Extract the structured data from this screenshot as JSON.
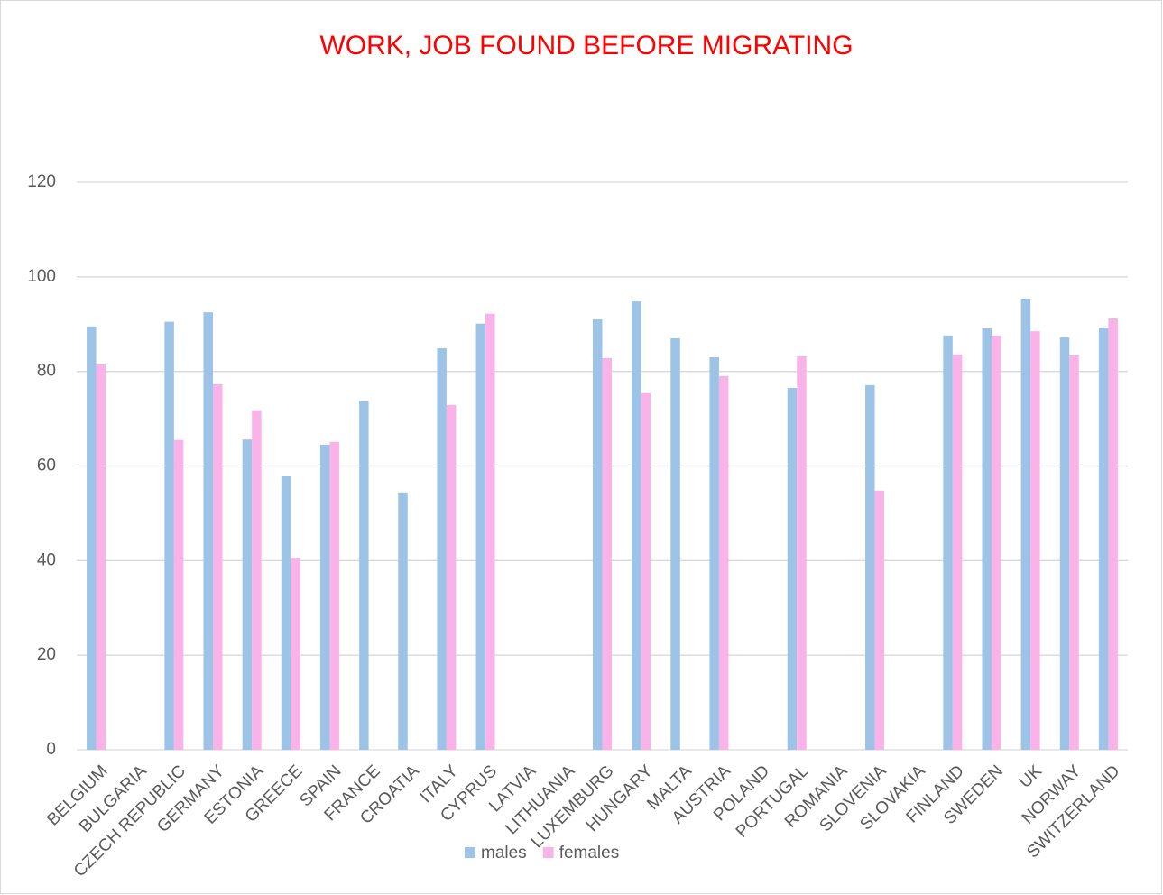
{
  "chart_data": {
    "type": "bar",
    "title": "WORK, JOB FOUND BEFORE MIGRATING",
    "categories": [
      "BELGIUM",
      "BULGARIA",
      "CZECH REPUBLIC",
      "GERMANY",
      "ESTONIA",
      "GREECE",
      "SPAIN",
      "FRANCE",
      "CROATIA",
      "ITALY",
      "CYPRUS",
      "LATVIA",
      "LITHUANIA",
      "LUXEMBURG",
      "HUNGARY",
      "MALTA",
      "AUSTRIA",
      "POLAND",
      "PORTUGAL",
      "ROMANIA",
      "SLOVENIA",
      "SLOVAKIA",
      "FINLAND",
      "SWEDEN",
      "UK",
      "NORWAY",
      "SWITZERLAND"
    ],
    "series": [
      {
        "name": "males",
        "color": "#9dc3e6",
        "values": [
          89.5,
          null,
          90.5,
          92.5,
          65.6,
          57.8,
          64.5,
          73.7,
          54.4,
          84.9,
          90.1,
          null,
          null,
          91,
          94.8,
          87,
          83,
          null,
          76.5,
          null,
          77.1,
          null,
          87.6,
          89.1,
          95.4,
          87.2,
          89.3
        ]
      },
      {
        "name": "females",
        "color": "#f9b3e8",
        "values": [
          81.5,
          null,
          65.5,
          77.3,
          71.8,
          40.5,
          65.1,
          null,
          null,
          72.9,
          92.2,
          null,
          null,
          82.8,
          75.4,
          null,
          79,
          null,
          83.2,
          null,
          54.8,
          null,
          83.6,
          87.6,
          88.5,
          83.4,
          91.2
        ]
      }
    ],
    "ylim": [
      0,
      120
    ],
    "yticks": [
      0,
      20,
      40,
      60,
      80,
      100,
      120
    ],
    "grid": true,
    "legend": "bottom"
  }
}
